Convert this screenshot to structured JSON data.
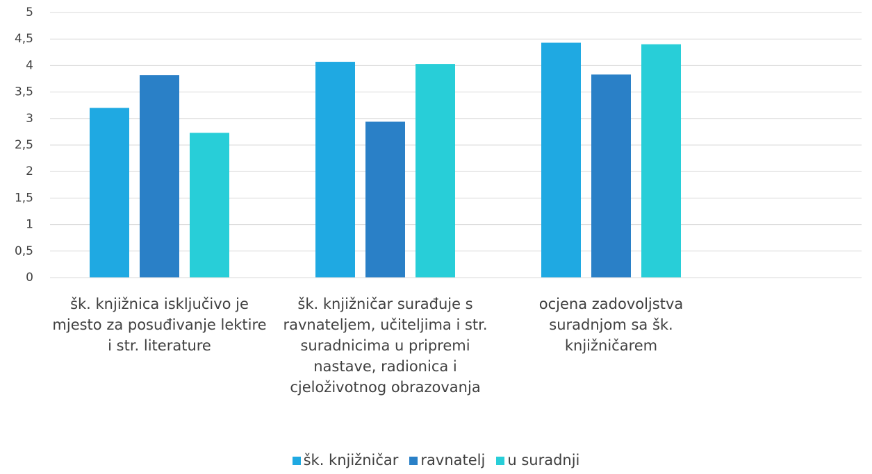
{
  "chart_data": {
    "type": "bar",
    "categories": [
      "šk. knjižnica isključivo je mjesto za posuđivanje lektire i str. literature",
      "šk. knjižničar surađuje s ravnateljem, učiteljima i str. suradnicima u pripremi nastave, radionica i cjeloživotnog obrazovanja",
      "ocjena zadovoljstva suradnjom sa šk. knjižničarem"
    ],
    "series": [
      {
        "name": "šk. knjižničar",
        "color": "#1fa9e2",
        "values": [
          3.2,
          4.07,
          4.43
        ]
      },
      {
        "name": "ravnatelj",
        "color": "#2a80c7",
        "values": [
          3.82,
          2.94,
          3.83
        ]
      },
      {
        "name": "u suradnji",
        "color": "#28ced8",
        "values": [
          2.73,
          4.03,
          4.4
        ]
      }
    ],
    "ylim": [
      0,
      5
    ],
    "yticks": [
      0,
      {
        "value": 0.5,
        "label": "0,5"
      },
      1,
      {
        "value": 1.5,
        "label": "1,5"
      },
      2,
      {
        "value": 2.5,
        "label": "2,5"
      },
      3,
      {
        "value": 3.5,
        "label": "3,5"
      },
      4,
      {
        "value": 4.5,
        "label": "4,5"
      },
      5
    ],
    "grid": true,
    "legend": "bottom"
  }
}
